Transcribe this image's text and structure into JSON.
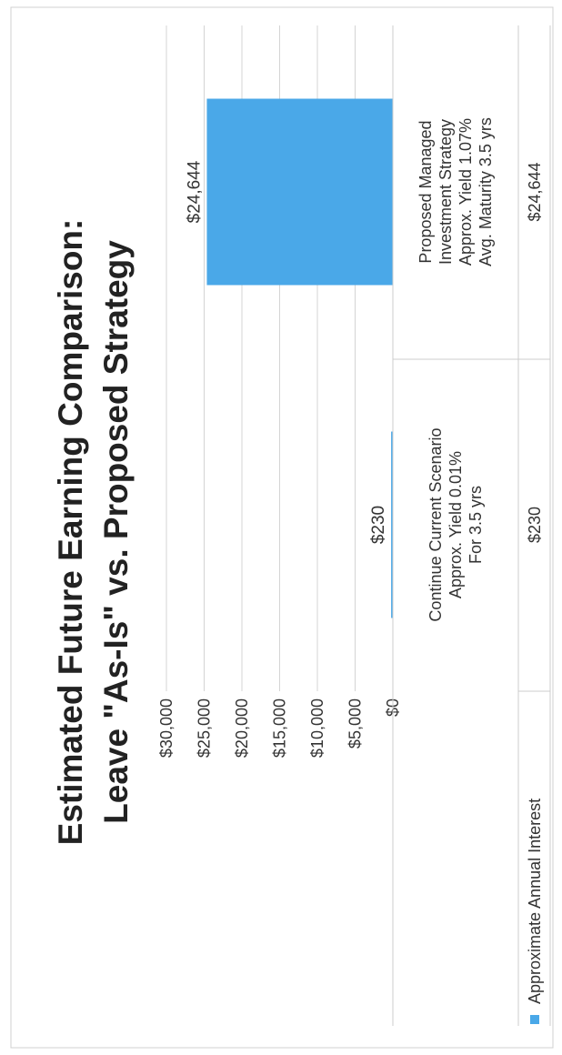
{
  "chart_data": {
    "type": "bar",
    "title_line1": "Estimated Future Earning Comparison:",
    "title_line2": "Leave \"As-Is\" vs. Proposed Strategy",
    "ylim": [
      0,
      30000
    ],
    "ticks": [
      {
        "value": 0,
        "label": "$0"
      },
      {
        "value": 5000,
        "label": "$5,000"
      },
      {
        "value": 10000,
        "label": "$10,000"
      },
      {
        "value": 15000,
        "label": "$15,000"
      },
      {
        "value": 20000,
        "label": "$20,000"
      },
      {
        "value": 25000,
        "label": "$25,000"
      },
      {
        "value": 30000,
        "label": "$30,000"
      }
    ],
    "categories": [
      {
        "lines": [
          "Continue Current Scenario",
          "Approx. Yield 0.01%",
          "For 3.5 yrs"
        ]
      },
      {
        "lines": [
          "Proposed Managed",
          "Investment Strategy",
          "Approx. Yield 1.07%",
          "Avg. Maturity  3.5 yrs"
        ]
      }
    ],
    "series": [
      {
        "name": "Approximate Annual Interest",
        "color": "#4aa8e8",
        "values": [
          230,
          24644
        ],
        "labels": [
          "$230",
          "$24,644"
        ]
      }
    ],
    "grid": true,
    "legend": "bottom-left",
    "data_table": true
  }
}
